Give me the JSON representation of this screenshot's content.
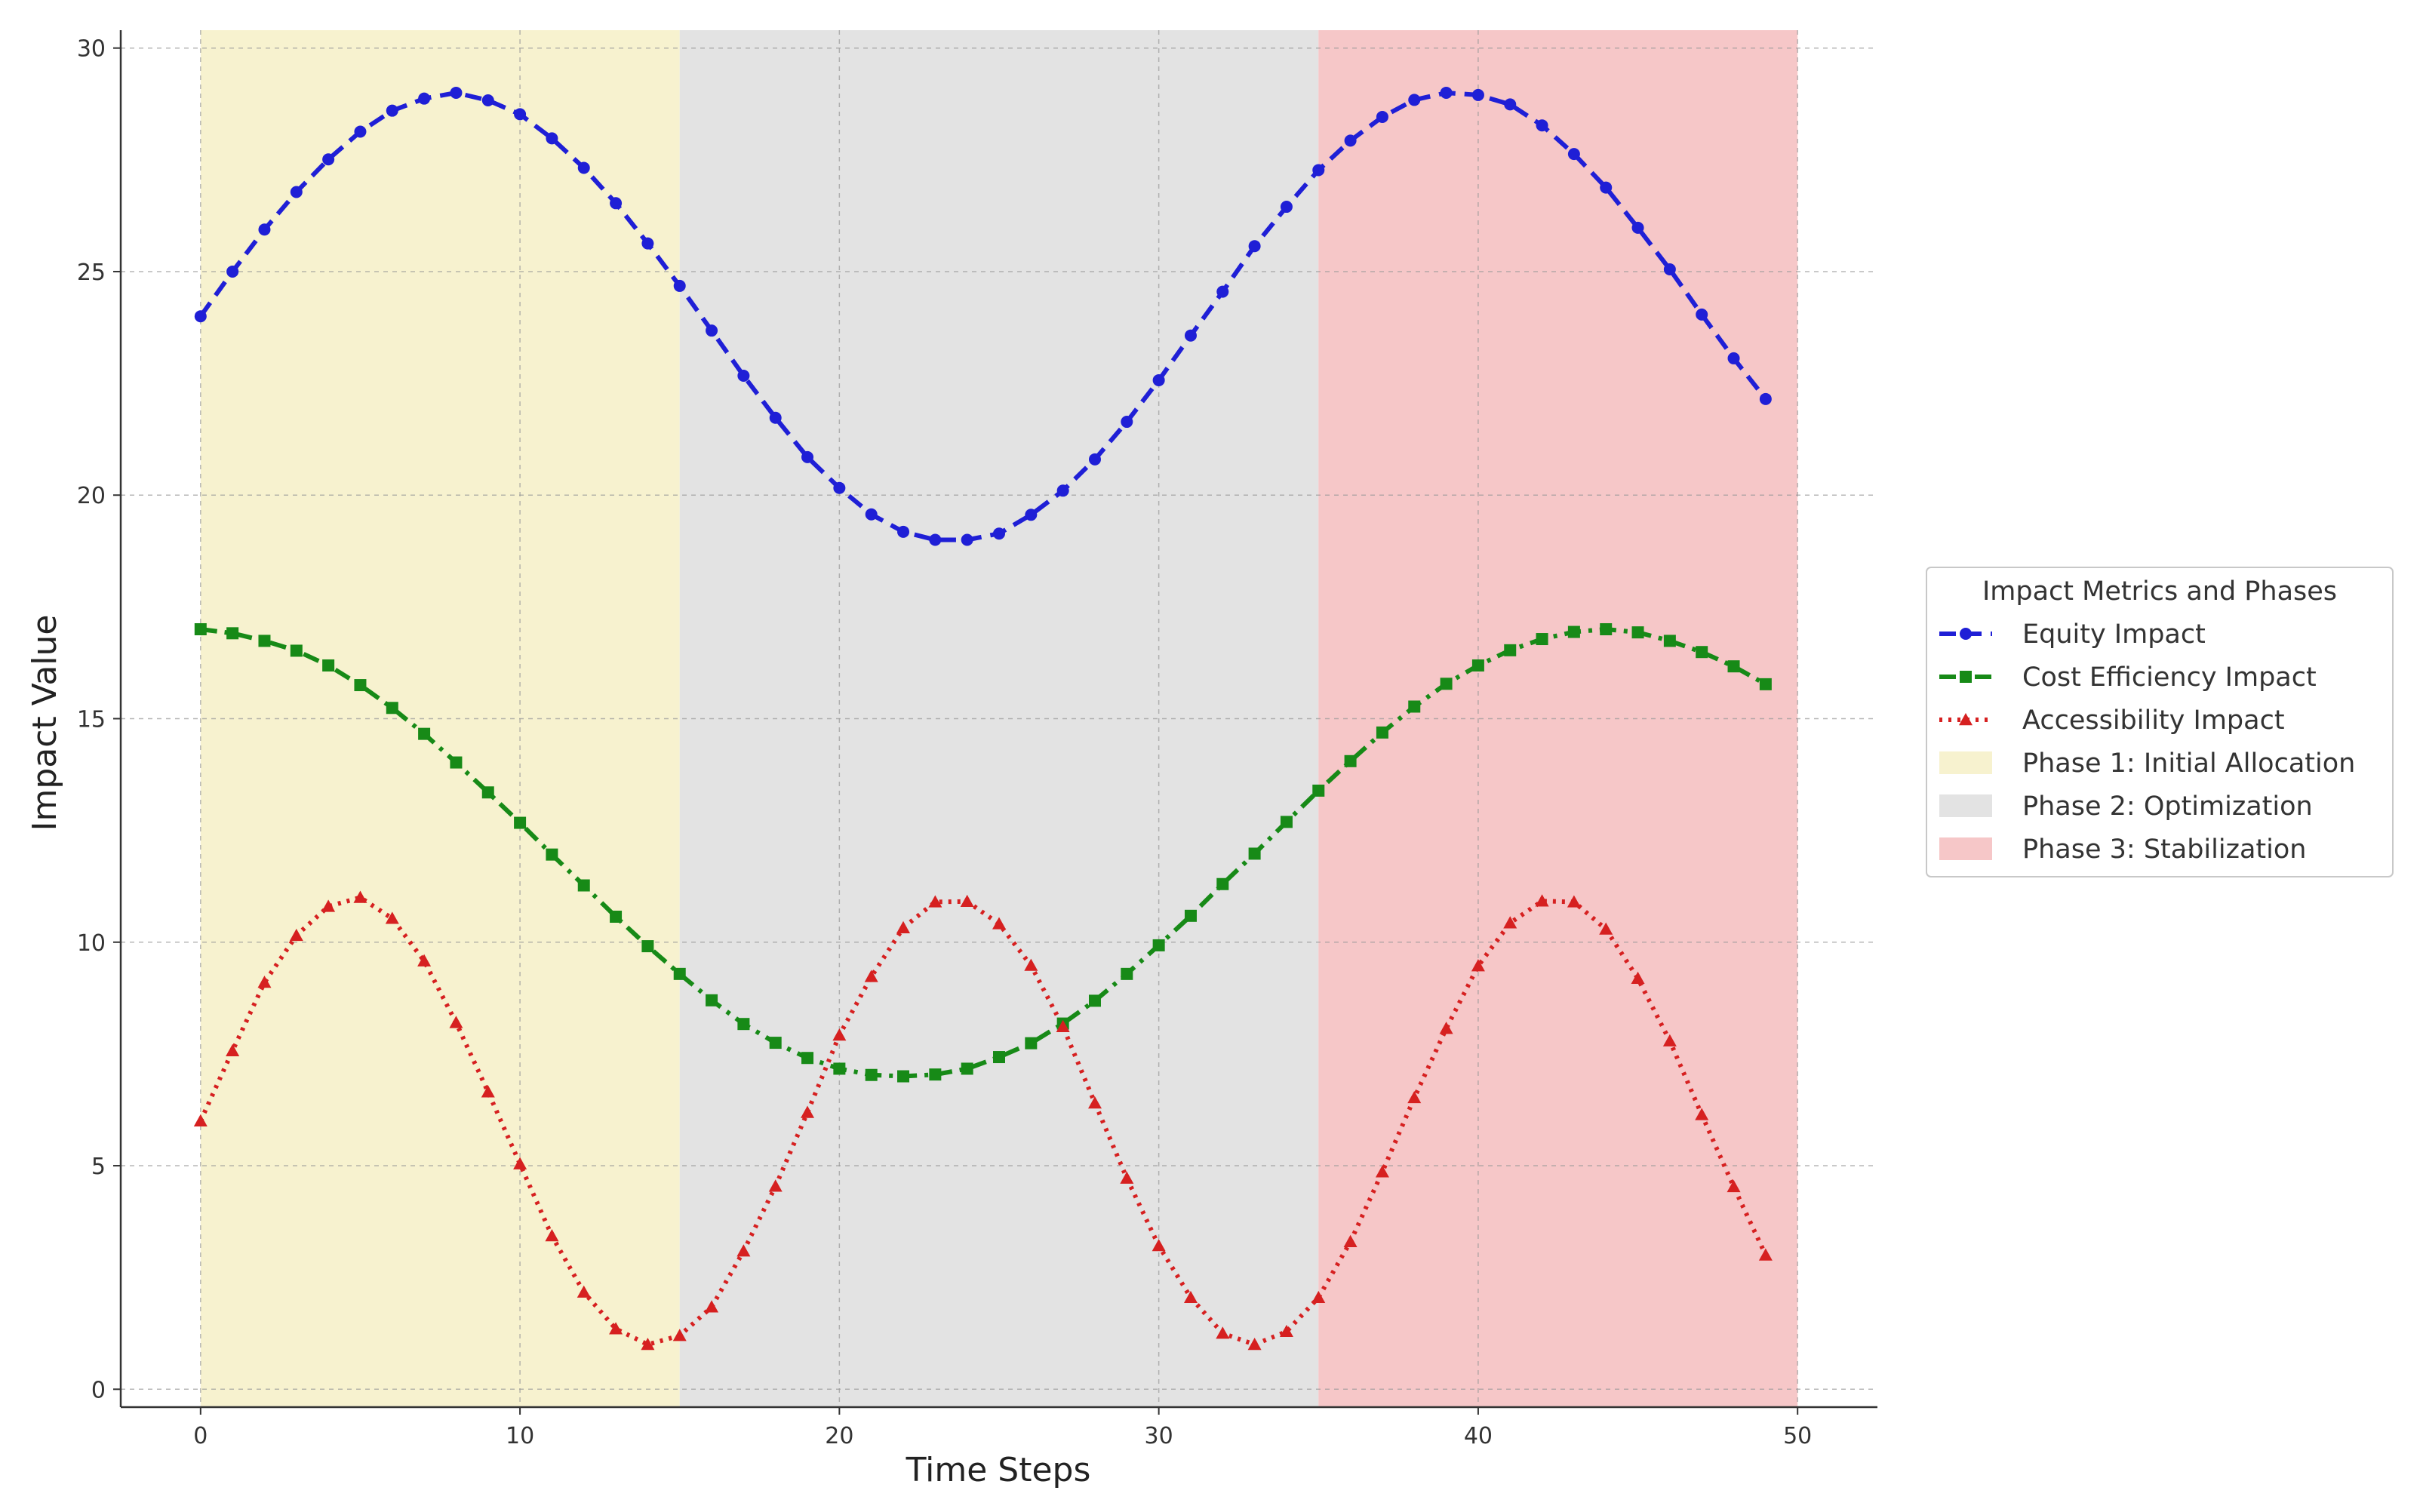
{
  "chart_data": {
    "type": "line",
    "title": "",
    "xlabel": "Time Steps",
    "ylabel": "Impact Value",
    "xlim": [
      -2.5,
      52.5
    ],
    "ylim": [
      -0.4,
      30.4
    ],
    "xticks": [
      0,
      10,
      20,
      30,
      40,
      50
    ],
    "yticks": [
      0,
      5,
      10,
      15,
      20,
      25,
      30
    ],
    "grid": true,
    "legend_title": "Impact Metrics and Phases",
    "legend_position": "right, outside plot",
    "phases": [
      {
        "name": "Phase 1: Initial Allocation",
        "start": 0,
        "end": 15,
        "color": "#f7f2cf"
      },
      {
        "name": "Phase 2: Optimization",
        "start": 15,
        "end": 35,
        "color": "#e3e3e3"
      },
      {
        "name": "Phase 3: Stabilization",
        "start": 35,
        "end": 50,
        "color": "#f6c7c8"
      }
    ],
    "x": [
      0,
      1,
      2,
      3,
      4,
      5,
      6,
      7,
      8,
      9,
      10,
      11,
      12,
      13,
      14,
      15,
      16,
      17,
      18,
      19,
      20,
      21,
      22,
      23,
      24,
      25,
      26,
      27,
      28,
      29,
      30,
      31,
      32,
      33,
      34,
      35,
      36,
      37,
      38,
      39,
      40,
      41,
      42,
      43,
      44,
      45,
      46,
      47,
      48,
      49
    ],
    "series": [
      {
        "name": "Equity Impact",
        "color": "#1f1fd6",
        "dash": "dashed",
        "marker": "circle",
        "values": [
          24.0,
          25.0,
          25.94,
          26.78,
          27.51,
          28.13,
          28.6,
          28.87,
          29.0,
          28.83,
          28.52,
          27.98,
          27.32,
          26.53,
          25.63,
          24.68,
          23.68,
          22.67,
          21.73,
          20.85,
          20.16,
          19.57,
          19.18,
          19.0,
          19.0,
          19.14,
          19.56,
          20.1,
          20.8,
          21.64,
          22.57,
          23.57,
          24.55,
          25.57,
          26.45,
          27.27,
          27.93,
          28.46,
          28.84,
          29.0,
          28.95,
          28.74,
          28.27,
          27.63,
          26.88,
          25.98,
          25.05,
          24.04,
          23.06,
          22.15
        ]
      },
      {
        "name": "Cost Efficiency Impact",
        "color": "#178a17",
        "dash": "dashdot",
        "marker": "square",
        "values": [
          17.0,
          16.91,
          16.74,
          16.52,
          16.19,
          15.75,
          15.24,
          14.66,
          14.02,
          13.35,
          12.67,
          11.96,
          11.27,
          10.57,
          9.91,
          9.29,
          8.7,
          8.17,
          7.75,
          7.41,
          7.17,
          7.03,
          7.0,
          7.04,
          7.17,
          7.43,
          7.74,
          8.18,
          8.69,
          9.29,
          9.93,
          10.59,
          11.3,
          11.98,
          12.69,
          13.39,
          14.05,
          14.69,
          15.27,
          15.78,
          16.19,
          16.53,
          16.78,
          16.94,
          17.0,
          16.93,
          16.74,
          16.49,
          16.17,
          15.77
        ]
      },
      {
        "name": "Accessibility Impact",
        "color": "#d62020",
        "dash": "dotted",
        "marker": "triangle",
        "values": [
          6.0,
          7.57,
          9.1,
          10.15,
          10.8,
          11.0,
          10.53,
          9.58,
          8.2,
          6.65,
          5.04,
          3.43,
          2.17,
          1.35,
          1.0,
          1.2,
          1.84,
          3.09,
          4.54,
          6.19,
          7.92,
          9.23,
          10.32,
          10.9,
          10.91,
          10.41,
          9.48,
          8.11,
          6.4,
          4.72,
          3.21,
          2.05,
          1.25,
          1.0,
          1.29,
          2.05,
          3.3,
          4.86,
          6.52,
          8.07,
          9.47,
          10.43,
          10.92,
          10.9,
          10.29,
          9.19,
          7.79,
          6.14,
          4.53,
          3.0
        ]
      }
    ]
  }
}
